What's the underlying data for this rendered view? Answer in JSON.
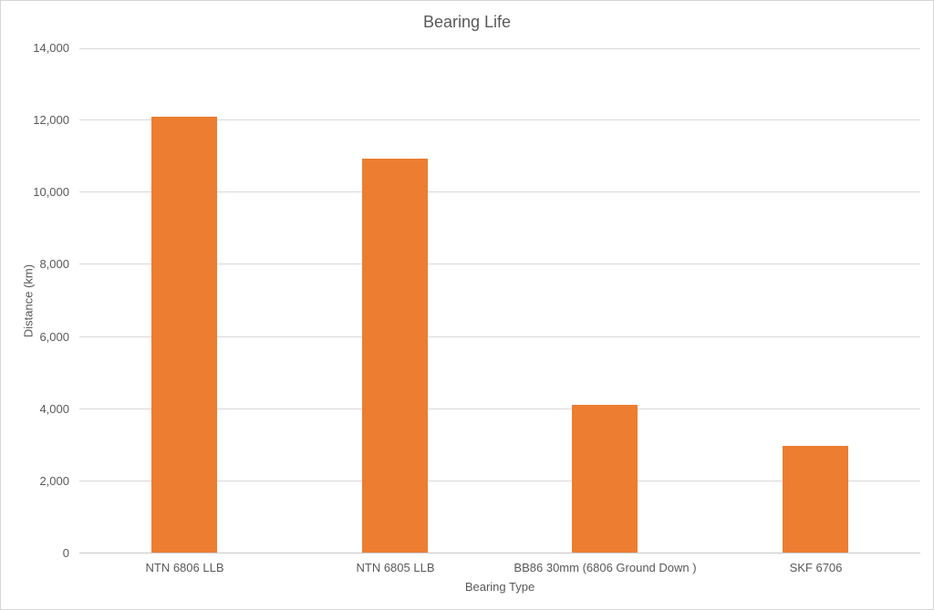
{
  "chart_data": {
    "type": "bar",
    "title": "Bearing Life",
    "xlabel": "Bearing Type",
    "ylabel": "Distance (km)",
    "categories": [
      "NTN 6806 LLB",
      "NTN 6805 LLB",
      "BB86 30mm (6806 Ground Down )",
      "SKF 6706"
    ],
    "values": [
      12080,
      10920,
      4100,
      2950
    ],
    "ylim": [
      0,
      14000
    ],
    "ytick_interval": 2000,
    "ytick_labels": [
      "0",
      "2,000",
      "4,000",
      "6,000",
      "8,000",
      "10,000",
      "12,000",
      "14,000"
    ],
    "grid": true,
    "legend": false
  },
  "colors": {
    "bar": "#ED7D31",
    "gridline": "#D9D9D9",
    "axis_line": "#C9C9C9",
    "text": "#595959",
    "border": "#D6D6D6",
    "background": "#FFFFFF"
  }
}
